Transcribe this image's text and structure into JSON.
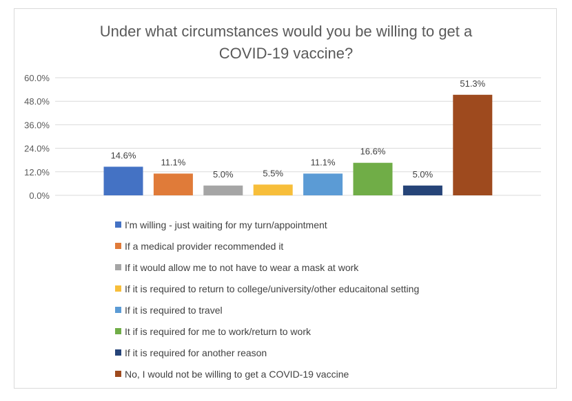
{
  "chart_data": {
    "type": "bar",
    "title": [
      "Under what circumstances would you be willing to get a",
      "COVID-19 vaccine?"
    ],
    "categories": [
      "I'm willing - just waiting for my turn/appointment",
      "If a medical provider recommended it",
      "If it would allow me to not have to wear a mask at work",
      "If it is required to return to college/university/other educaitonal setting",
      "If it is required to travel",
      "It if is required for me to work/return to work",
      "If it is required for another reason",
      "No, I would not be willing to get a COVID-19 vaccine"
    ],
    "values": [
      14.6,
      11.1,
      5.0,
      5.5,
      11.1,
      16.6,
      5.0,
      51.3
    ],
    "data_labels": [
      "14.6%",
      "11.1%",
      "5.0%",
      "5.5%",
      "11.1%",
      "16.6%",
      "5.0%",
      "51.3%"
    ],
    "colors": [
      "#4472c4",
      "#e07b39",
      "#a5a5a5",
      "#f7be3a",
      "#5b9bd5",
      "#70ad47",
      "#264478",
      "#9e4a1e"
    ],
    "yticks": [
      "0.0%",
      "12.0%",
      "24.0%",
      "36.0%",
      "48.0%",
      "60.0%"
    ],
    "ytick_values": [
      0,
      12,
      24,
      36,
      48,
      60
    ],
    "ylim": [
      0,
      60
    ],
    "xlabel": "",
    "ylabel": "",
    "grid": true,
    "legend_position": "bottom"
  }
}
